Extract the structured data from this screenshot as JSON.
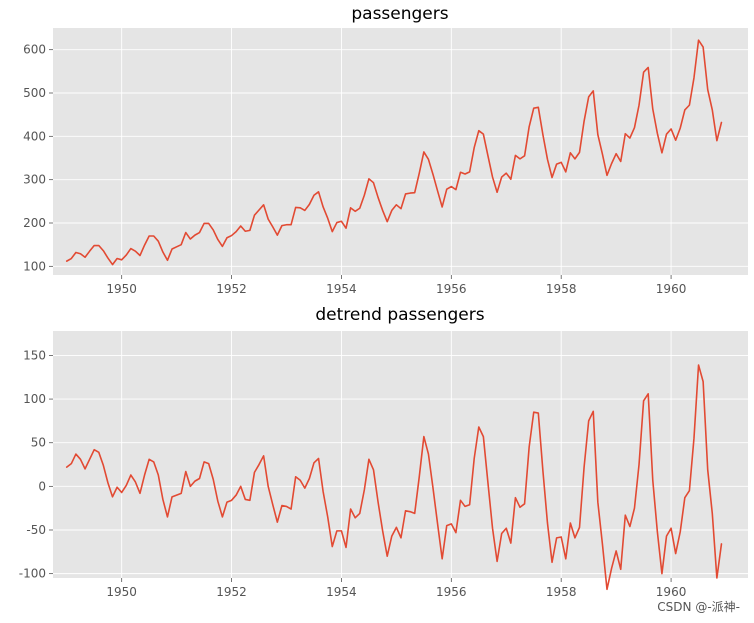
{
  "chart_data": [
    {
      "type": "line",
      "title": "passengers",
      "xlabel": "",
      "ylabel": "",
      "xlim": [
        1948.75,
        1961.4
      ],
      "ylim": [
        80,
        650
      ],
      "xticks": [
        1950,
        1952,
        1954,
        1956,
        1958,
        1960
      ],
      "yticks": [
        100,
        200,
        300,
        400,
        500,
        600
      ],
      "grid": true,
      "x_start": 1949.0,
      "x_step": 0.0833333,
      "series": [
        {
          "color": "#e24a33",
          "values": [
            112,
            118,
            132,
            129,
            121,
            135,
            148,
            148,
            136,
            119,
            104,
            118,
            115,
            126,
            141,
            135,
            125,
            149,
            170,
            170,
            158,
            133,
            114,
            140,
            145,
            150,
            178,
            163,
            172,
            178,
            199,
            199,
            184,
            162,
            146,
            166,
            171,
            180,
            193,
            181,
            183,
            218,
            230,
            242,
            209,
            191,
            172,
            194,
            196,
            196,
            236,
            235,
            229,
            243,
            264,
            272,
            237,
            211,
            180,
            201,
            204,
            188,
            235,
            227,
            234,
            264,
            302,
            293,
            259,
            229,
            203,
            229,
            242,
            233,
            267,
            269,
            270,
            315,
            364,
            347,
            312,
            274,
            237,
            278,
            284,
            277,
            317,
            313,
            318,
            374,
            413,
            405,
            355,
            306,
            271,
            306,
            315,
            301,
            356,
            348,
            355,
            422,
            465,
            467,
            404,
            347,
            305,
            336,
            340,
            318,
            362,
            348,
            363,
            435,
            491,
            505,
            404,
            359,
            310,
            337,
            360,
            342,
            406,
            396,
            420,
            472,
            548,
            559,
            463,
            407,
            362,
            405,
            417,
            391,
            419,
            461,
            472,
            535,
            622,
            606,
            508,
            461,
            390,
            432
          ]
        }
      ]
    },
    {
      "type": "line",
      "title": "detrend passengers",
      "xlabel": "",
      "ylabel": "",
      "xlim": [
        1948.75,
        1961.4
      ],
      "ylim": [
        -105,
        178
      ],
      "xticks": [
        1950,
        1952,
        1954,
        1956,
        1958,
        1960
      ],
      "yticks": [
        -100,
        -50,
        0,
        50,
        100,
        150
      ],
      "grid": true,
      "x_start": 1949.0,
      "x_step": 0.0833333,
      "series": [
        {
          "color": "#e24a33",
          "values": [
            22,
            26,
            37,
            31,
            20,
            31,
            42,
            39,
            24,
            4,
            -12,
            -1,
            -7,
            1,
            13,
            5,
            -8,
            13,
            31,
            28,
            13,
            -15,
            -35,
            -12,
            -10,
            -8,
            17,
            0,
            6,
            9,
            28,
            26,
            8,
            -17,
            -35,
            -18,
            -16,
            -10,
            0,
            -15,
            -16,
            16,
            25,
            35,
            0,
            -21,
            -41,
            -22,
            -23,
            -26,
            11,
            7,
            -2,
            9,
            27,
            32,
            -6,
            -35,
            -69,
            -51,
            -51,
            -70,
            -26,
            -36,
            -31,
            -4,
            31,
            19,
            -18,
            -51,
            -80,
            -57,
            -47,
            -59,
            -28,
            -29,
            -31,
            11,
            57,
            37,
            -2,
            -43,
            -83,
            -45,
            -43,
            -53,
            -16,
            -23,
            -21,
            32,
            68,
            57,
            4,
            -48,
            -86,
            -54,
            -48,
            -65,
            -13,
            -24,
            -20,
            45,
            85,
            84,
            18,
            -42,
            -87,
            -59,
            -58,
            -83,
            -42,
            -59,
            -47,
            22,
            75,
            86,
            -18,
            -66,
            -118,
            -94,
            -74,
            -95,
            -33,
            -46,
            -25,
            25,
            98,
            106,
            7,
            -52,
            -100,
            -57,
            -48,
            -77,
            -52,
            -13,
            -5,
            55,
            139,
            120,
            19,
            -31,
            -105,
            -66
          ]
        }
      ]
    }
  ],
  "watermark": "CSDN @-派神-"
}
